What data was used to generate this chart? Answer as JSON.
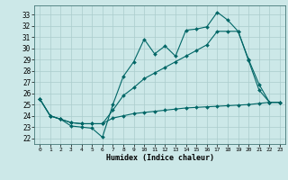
{
  "xlabel": "Humidex (Indice chaleur)",
  "xlim": [
    -0.5,
    23.5
  ],
  "ylim": [
    21.5,
    33.8
  ],
  "xticks": [
    0,
    1,
    2,
    3,
    4,
    5,
    6,
    7,
    8,
    9,
    10,
    11,
    12,
    13,
    14,
    15,
    16,
    17,
    18,
    19,
    20,
    21,
    22,
    23
  ],
  "yticks": [
    22,
    23,
    24,
    25,
    26,
    27,
    28,
    29,
    30,
    31,
    32,
    33
  ],
  "bg_color": "#cce8e8",
  "grid_color": "#aacccc",
  "line_color": "#006666",
  "line1_x": [
    0,
    1,
    2,
    3,
    4,
    5,
    6,
    7,
    8,
    9,
    10,
    11,
    12,
    13,
    14,
    15,
    16,
    17,
    18,
    19,
    20,
    21,
    22,
    23
  ],
  "line1_y": [
    25.5,
    24.0,
    23.7,
    23.1,
    23.0,
    22.9,
    22.1,
    25.0,
    27.5,
    28.8,
    30.8,
    29.5,
    30.2,
    29.3,
    31.6,
    31.7,
    31.9,
    33.2,
    32.5,
    31.5,
    28.9,
    26.3,
    25.2,
    25.2
  ],
  "line2_x": [
    0,
    1,
    2,
    3,
    4,
    5,
    6,
    7,
    8,
    9,
    10,
    11,
    12,
    13,
    14,
    15,
    16,
    17,
    18,
    19,
    20,
    21,
    22,
    23
  ],
  "line2_y": [
    25.5,
    24.0,
    23.7,
    23.4,
    23.3,
    23.3,
    23.3,
    24.5,
    25.8,
    26.5,
    27.3,
    27.8,
    28.3,
    28.8,
    29.3,
    29.8,
    30.3,
    31.5,
    31.5,
    31.5,
    29.0,
    26.8,
    25.2,
    25.2
  ],
  "line3_x": [
    0,
    1,
    2,
    3,
    4,
    5,
    6,
    7,
    8,
    9,
    10,
    11,
    12,
    13,
    14,
    15,
    16,
    17,
    18,
    19,
    20,
    21,
    22,
    23
  ],
  "line3_y": [
    25.5,
    24.0,
    23.7,
    23.4,
    23.3,
    23.3,
    23.3,
    23.8,
    24.0,
    24.2,
    24.3,
    24.4,
    24.5,
    24.6,
    24.7,
    24.75,
    24.8,
    24.85,
    24.9,
    24.95,
    25.0,
    25.1,
    25.2,
    25.2
  ]
}
